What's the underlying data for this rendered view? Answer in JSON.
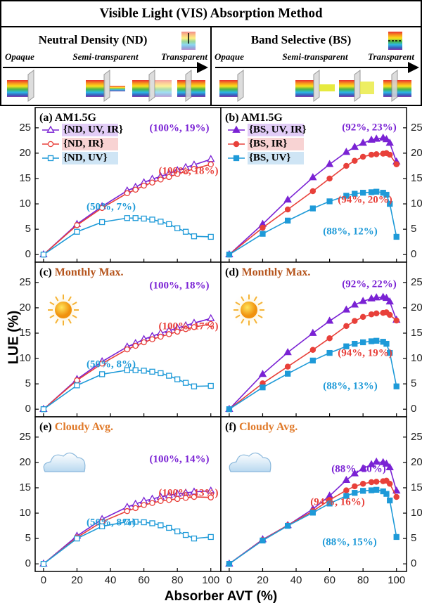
{
  "header": {
    "title": "Visible Light (VIS) Absorption Method",
    "left": {
      "title": "Neutral Density (ND)",
      "steps": [
        "Opaque",
        "Semi-transparent",
        "Transparent"
      ]
    },
    "right": {
      "title": "Band Selective (BS)",
      "steps": [
        "Opaque",
        "Semi-transparent",
        "Transparent"
      ]
    }
  },
  "ylabel": "LUE (%)",
  "xlabel": "Absorber AVT (%)",
  "chart_data": [
    {
      "type": "line",
      "label": "(a)",
      "title": "AM1.5G",
      "title_color": "#000000",
      "x": [
        0,
        20,
        35,
        50,
        55,
        60,
        65,
        70,
        75,
        80,
        85,
        90,
        100
      ],
      "series": [
        {
          "name": "{ND, UV, IR}",
          "color": "#7a22d4",
          "highlight": "#e2cdf7",
          "marker": "triangle",
          "filled": false,
          "values": [
            0,
            6.0,
            9.5,
            12.6,
            13.3,
            14.2,
            14.9,
            15.4,
            16.0,
            16.6,
            17.2,
            17.7,
            18.8
          ]
        },
        {
          "name": "{ND, IR}",
          "color": "#e8403a",
          "highlight": "#f8d3d3",
          "marker": "circle",
          "filled": false,
          "values": [
            0,
            5.8,
            9.2,
            12.1,
            12.8,
            13.6,
            14.2,
            14.8,
            15.3,
            15.9,
            16.4,
            16.9,
            17.8
          ]
        },
        {
          "name": "{ND, UV}",
          "color": "#1e9ad8",
          "highlight": "#cfe5f5",
          "marker": "square",
          "filled": false,
          "values": [
            0,
            4.5,
            6.4,
            7.2,
            7.2,
            7.1,
            6.9,
            6.5,
            6.0,
            5.2,
            4.5,
            3.6,
            3.5
          ]
        }
      ],
      "annotations": [
        {
          "text": "(100%, 19%)",
          "color": "#7a22d4"
        },
        {
          "text": "(100%, 18%)",
          "color": "#e8403a"
        },
        {
          "text": "(50%, 7%)",
          "color": "#1e9ad8"
        }
      ],
      "xlim": [
        -5,
        106
      ],
      "ylim": [
        -1.5,
        29
      ],
      "xticks": [
        0,
        20,
        40,
        60,
        80,
        100
      ],
      "yticks": [
        0,
        5,
        10,
        15,
        20,
        25
      ]
    },
    {
      "type": "line",
      "label": "(b)",
      "title": "AM1.5G",
      "title_color": "#000000",
      "x": [
        0,
        20,
        35,
        50,
        60,
        70,
        75,
        80,
        85,
        88,
        92,
        94,
        96,
        100
      ],
      "series": [
        {
          "name": "{BS, UV, IR}",
          "color": "#7a22d4",
          "highlight": "#e2cdf7",
          "marker": "triangle",
          "filled": true,
          "values": [
            0,
            6.0,
            10.8,
            15.2,
            17.8,
            20.2,
            21.2,
            22.0,
            22.6,
            22.8,
            23.0,
            22.7,
            22.0,
            18.3
          ]
        },
        {
          "name": "{BS, IR}",
          "color": "#e8403a",
          "highlight": "#f8d3d3",
          "marker": "circle",
          "filled": true,
          "values": [
            0,
            5.3,
            8.9,
            12.5,
            15.0,
            17.5,
            18.5,
            19.3,
            19.7,
            19.8,
            19.9,
            20.0,
            19.7,
            17.8
          ]
        },
        {
          "name": "{BS, UV}",
          "color": "#1e9ad8",
          "highlight": "#cfe5f5",
          "marker": "square",
          "filled": true,
          "values": [
            0,
            4.1,
            6.7,
            9.1,
            10.5,
            11.6,
            12.0,
            12.2,
            12.3,
            12.4,
            12.2,
            11.8,
            10.0,
            3.5
          ]
        }
      ],
      "annotations": [
        {
          "text": "(92%, 23%)",
          "color": "#7a22d4"
        },
        {
          "text": "(94%, 20%)",
          "color": "#e8403a"
        },
        {
          "text": "(88%, 12%)",
          "color": "#1e9ad8"
        }
      ],
      "xlim": [
        -5,
        106
      ],
      "ylim": [
        -1.5,
        29
      ],
      "xticks": [
        0,
        20,
        40,
        60,
        80,
        100
      ],
      "yticks": [
        0,
        5,
        10,
        15,
        20,
        25
      ]
    },
    {
      "type": "line",
      "label": "(c)",
      "title": "Monthly Max.",
      "title_color": "#b5541c",
      "x": [
        0,
        20,
        35,
        50,
        55,
        60,
        65,
        70,
        75,
        80,
        85,
        90,
        100
      ],
      "series": [
        {
          "color": "#7a22d4",
          "marker": "triangle",
          "filled": false,
          "values": [
            0,
            5.9,
            9.4,
            12.3,
            13.0,
            13.8,
            14.4,
            15.0,
            15.5,
            16.0,
            16.5,
            17.0,
            17.9
          ]
        },
        {
          "color": "#e8403a",
          "marker": "circle",
          "filled": false,
          "values": [
            0,
            5.7,
            9.0,
            11.8,
            12.5,
            13.2,
            13.8,
            14.3,
            14.8,
            15.3,
            15.8,
            16.2,
            16.8
          ]
        },
        {
          "color": "#1e9ad8",
          "marker": "square",
          "filled": false,
          "values": [
            0,
            4.7,
            6.9,
            7.7,
            7.7,
            7.6,
            7.4,
            7.1,
            6.6,
            5.9,
            5.2,
            4.5,
            4.6
          ]
        }
      ],
      "annotations": [
        {
          "text": "(100%, 18%)",
          "color": "#7a22d4"
        },
        {
          "text": "(100%, 17%)",
          "color": "#e8403a"
        },
        {
          "text": "(50%, 8%)",
          "color": "#1e9ad8"
        }
      ],
      "xlim": [
        -5,
        106
      ],
      "ylim": [
        -1.5,
        29
      ],
      "xticks": [
        0,
        20,
        40,
        60,
        80,
        100
      ],
      "yticks": [
        0,
        5,
        10,
        15,
        20,
        25
      ]
    },
    {
      "type": "line",
      "label": "(d)",
      "title": "Monthly Max.",
      "title_color": "#b5541c",
      "x": [
        0,
        20,
        35,
        50,
        60,
        70,
        75,
        80,
        85,
        88,
        92,
        94,
        96,
        100
      ],
      "series": [
        {
          "color": "#7a22d4",
          "marker": "triangle",
          "filled": true,
          "values": [
            0,
            6.9,
            11.2,
            15.0,
            17.4,
            19.6,
            20.6,
            21.3,
            21.8,
            22.0,
            22.1,
            21.9,
            21.2,
            17.6
          ]
        },
        {
          "color": "#e8403a",
          "marker": "circle",
          "filled": true,
          "values": [
            0,
            5.1,
            8.4,
            11.7,
            14.0,
            16.4,
            17.4,
            18.2,
            18.7,
            18.9,
            19.0,
            19.1,
            18.6,
            17.5
          ]
        },
        {
          "color": "#1e9ad8",
          "marker": "square",
          "filled": true,
          "values": [
            0,
            4.3,
            7.0,
            9.6,
            11.1,
            12.4,
            12.9,
            13.2,
            13.4,
            13.5,
            13.3,
            12.9,
            11.1,
            4.5
          ]
        }
      ],
      "annotations": [
        {
          "text": "(92%, 22%)",
          "color": "#7a22d4"
        },
        {
          "text": "(94%, 19%)",
          "color": "#e8403a"
        },
        {
          "text": "(88%, 13%)",
          "color": "#1e9ad8"
        }
      ],
      "xlim": [
        -5,
        106
      ],
      "ylim": [
        -1.5,
        29
      ],
      "xticks": [
        0,
        20,
        40,
        60,
        80,
        100
      ],
      "yticks": [
        0,
        5,
        10,
        15,
        20,
        25
      ]
    },
    {
      "type": "line",
      "label": "(e)",
      "title": "Cloudy Avg.",
      "title_color": "#e07a2a",
      "x": [
        0,
        20,
        35,
        50,
        55,
        60,
        65,
        70,
        75,
        80,
        85,
        90,
        100
      ],
      "series": [
        {
          "color": "#7a22d4",
          "marker": "triangle",
          "filled": false,
          "values": [
            0,
            5.5,
            8.8,
            11.2,
            11.8,
            12.4,
            12.8,
            13.2,
            13.5,
            13.8,
            14.0,
            14.2,
            14.4
          ]
        },
        {
          "color": "#e8403a",
          "marker": "circle",
          "filled": false,
          "values": [
            0,
            5.2,
            8.3,
            10.4,
            11.0,
            11.6,
            12.0,
            12.4,
            12.6,
            12.8,
            13.0,
            13.2,
            13.1
          ]
        },
        {
          "color": "#1e9ad8",
          "marker": "square",
          "filled": false,
          "values": [
            0,
            5.0,
            7.4,
            8.3,
            8.3,
            8.2,
            8.0,
            7.6,
            7.1,
            6.4,
            5.7,
            5.0,
            5.3
          ]
        }
      ],
      "annotations": [
        {
          "text": "(100%, 14%)",
          "color": "#7a22d4"
        },
        {
          "text": "(100%, 13%)",
          "color": "#e8403a"
        },
        {
          "text": "(50%, 8%)",
          "color": "#1e9ad8"
        }
      ],
      "xlim": [
        -5,
        106
      ],
      "ylim": [
        -1.5,
        29
      ],
      "xticks": [
        0,
        20,
        40,
        60,
        80,
        100
      ],
      "yticks": [
        0,
        5,
        10,
        15,
        20,
        25
      ]
    },
    {
      "type": "line",
      "label": "(f)",
      "title": "Cloudy Avg.",
      "title_color": "#e07a2a",
      "x": [
        0,
        20,
        35,
        50,
        60,
        70,
        75,
        80,
        85,
        88,
        92,
        94,
        96,
        100
      ],
      "series": [
        {
          "color": "#7a22d4",
          "marker": "triangle",
          "filled": true,
          "values": [
            0,
            4.8,
            7.6,
            10.8,
            13.4,
            16.5,
            17.8,
            18.8,
            19.6,
            20.1,
            20.0,
            19.7,
            19.0,
            14.4
          ]
        },
        {
          "color": "#e8403a",
          "marker": "circle",
          "filled": true,
          "values": [
            0,
            4.7,
            7.6,
            10.4,
            12.6,
            14.5,
            15.3,
            15.8,
            16.1,
            16.2,
            16.3,
            16.4,
            15.8,
            13.2
          ]
        },
        {
          "color": "#1e9ad8",
          "marker": "square",
          "filled": true,
          "values": [
            0,
            4.6,
            7.5,
            10.1,
            11.9,
            13.4,
            14.0,
            14.4,
            14.5,
            14.6,
            14.3,
            13.8,
            12.5,
            5.3
          ]
        }
      ],
      "annotations": [
        {
          "text": "(88%, 20%)",
          "color": "#7a22d4"
        },
        {
          "text": "(94%, 16%)",
          "color": "#e8403a"
        },
        {
          "text": "(88%, 15%)",
          "color": "#1e9ad8"
        }
      ],
      "xlim": [
        -5,
        106
      ],
      "ylim": [
        -1.5,
        29
      ],
      "xticks": [
        0,
        20,
        40,
        60,
        80,
        100
      ],
      "yticks": [
        0,
        5,
        10,
        15,
        20,
        25
      ]
    }
  ]
}
